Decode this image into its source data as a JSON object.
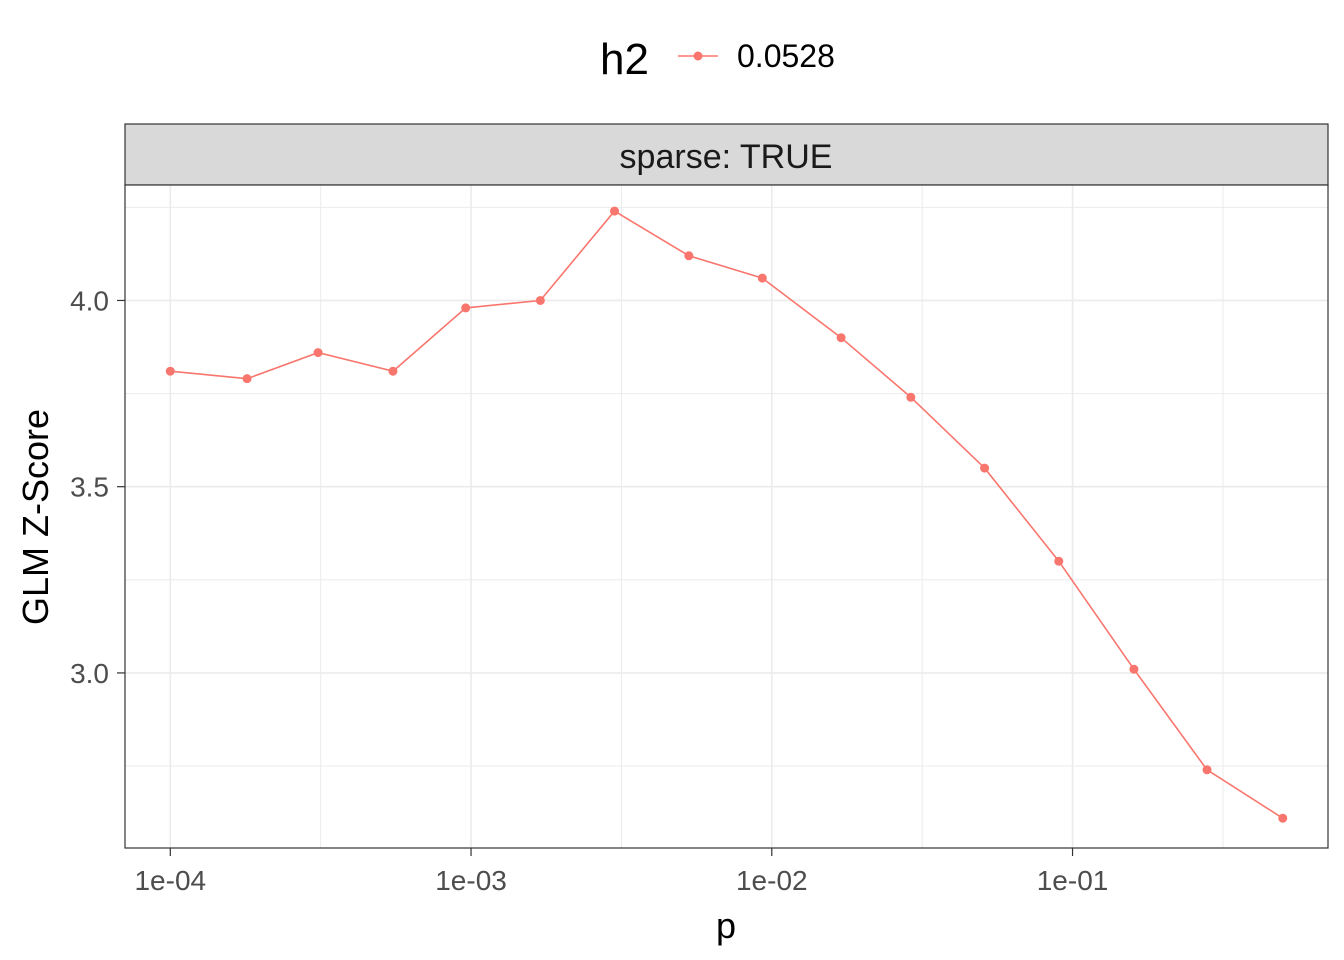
{
  "chart_data": {
    "type": "line",
    "facet_label": "sparse: TRUE",
    "xlabel": "p",
    "ylabel": "GLM Z-Score",
    "x_scale": "log10",
    "x_ticks": [
      0.0001,
      0.001,
      0.01,
      0.1
    ],
    "x_tick_labels": [
      "1e-04",
      "1e-03",
      "1e-02",
      "1e-01"
    ],
    "xlim": [
      7.07e-05,
      0.707
    ],
    "y_ticks": [
      3.0,
      3.5,
      4.0
    ],
    "y_tick_labels": [
      "3.0",
      "3.5",
      "4.0"
    ],
    "ylim": [
      2.53,
      4.31
    ],
    "grid": true,
    "legend": {
      "title": "h2",
      "position": "top",
      "entries": [
        "0.0528"
      ]
    },
    "series": [
      {
        "name": "0.0528",
        "color": "#F8766D",
        "x": [
          0.0001,
          0.00018,
          0.00031,
          0.00055,
          0.00096,
          0.0017,
          0.003,
          0.0053,
          0.0093,
          0.017,
          0.029,
          0.051,
          0.09,
          0.16,
          0.28,
          0.5
        ],
        "y": [
          3.81,
          3.79,
          3.86,
          3.81,
          3.98,
          4.0,
          4.24,
          4.12,
          4.06,
          3.9,
          3.74,
          3.55,
          3.3,
          3.01,
          2.74,
          2.61
        ]
      }
    ]
  }
}
